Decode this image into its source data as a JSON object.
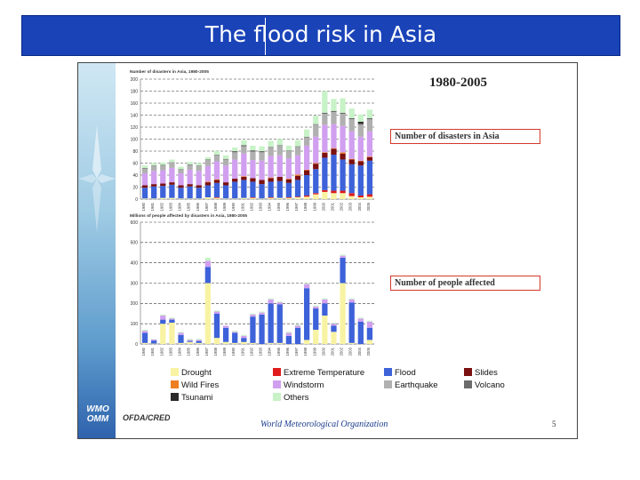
{
  "slide_title": "The flood risk in Asia",
  "period_label": "1980-2005",
  "callouts": {
    "disasters": "Number of disasters in Asia",
    "affected": "Number of people affected"
  },
  "footer": {
    "source": "OFDA/CRED",
    "org": "World Meteorological Organization",
    "page_number": "5"
  },
  "logo": {
    "line1": "WMO",
    "line2": "OMM"
  },
  "colors": {
    "Drought": "#f8f3a3",
    "Extreme Temperature": "#e01b1b",
    "Flood": "#3d62d9",
    "Slides": "#7a1010",
    "Wild Fires": "#f07e23",
    "Windstorm": "#d19ff0",
    "Earthquake": "#b0b0b0",
    "Volcano": "#6b6b6b",
    "Tsunami": "#2a2a2a",
    "Others": "#c8f2c8",
    "title_bar": "#1a43b8"
  },
  "legend": [
    {
      "name": "Drought",
      "label": "Drought"
    },
    {
      "name": "Extreme Temperature",
      "label": "Extreme Temperature"
    },
    {
      "name": "Flood",
      "label": "Flood"
    },
    {
      "name": "Slides",
      "label": "Slides"
    },
    {
      "name": "Wild Fires",
      "label": "Wild Fires"
    },
    {
      "name": "Windstorm",
      "label": "Windstorm"
    },
    {
      "name": "Earthquake",
      "label": "Earthquake"
    },
    {
      "name": "Volcano",
      "label": "Volcano"
    },
    {
      "name": "Tsunami",
      "label": "Tsunami"
    },
    {
      "name": "Others",
      "label": "Others"
    }
  ],
  "chart_data": [
    {
      "type": "bar",
      "stacked": true,
      "title": "Number of disasters in Asia, 1980-2005",
      "ylim": [
        0,
        200
      ],
      "yticks": [
        0,
        20,
        40,
        60,
        80,
        100,
        120,
        140,
        160,
        180,
        200
      ],
      "grid": true,
      "categories": [
        "1980",
        "1981",
        "1982",
        "1983",
        "1984",
        "1985",
        "1986",
        "1987",
        "1988",
        "1989",
        "1990",
        "1991",
        "1992",
        "1993",
        "1994",
        "1995",
        "1996",
        "1997",
        "1998",
        "1999",
        "2000",
        "2001",
        "2002",
        "2003",
        "2004",
        "2005"
      ],
      "series": [
        {
          "name": "Drought",
          "values": [
            1,
            1,
            2,
            2,
            1,
            1,
            1,
            3,
            2,
            1,
            1,
            2,
            2,
            1,
            2,
            2,
            2,
            3,
            4,
            8,
            12,
            10,
            10,
            5,
            3,
            4
          ]
        },
        {
          "name": "Extreme Temperature",
          "values": [
            0,
            0,
            0,
            0,
            0,
            0,
            0,
            0,
            1,
            0,
            0,
            0,
            1,
            0,
            1,
            0,
            1,
            1,
            2,
            2,
            3,
            4,
            4,
            5,
            3,
            4
          ]
        },
        {
          "name": "Flood",
          "values": [
            18,
            20,
            20,
            22,
            18,
            20,
            18,
            20,
            24,
            22,
            28,
            30,
            26,
            24,
            26,
            28,
            24,
            28,
            34,
            40,
            54,
            60,
            52,
            48,
            50,
            56
          ]
        },
        {
          "name": "Slides",
          "values": [
            4,
            4,
            4,
            4,
            4,
            4,
            4,
            5,
            5,
            5,
            5,
            5,
            6,
            7,
            6,
            7,
            6,
            7,
            8,
            9,
            8,
            10,
            10,
            8,
            7,
            6
          ]
        },
        {
          "name": "Wild Fires",
          "values": [
            0,
            0,
            0,
            0,
            0,
            0,
            0,
            1,
            1,
            0,
            0,
            1,
            0,
            0,
            1,
            0,
            1,
            2,
            1,
            1,
            1,
            1,
            2,
            1,
            1,
            1
          ]
        },
        {
          "name": "Windstorm",
          "values": [
            20,
            22,
            22,
            24,
            20,
            24,
            24,
            26,
            30,
            28,
            32,
            38,
            30,
            32,
            36,
            36,
            34,
            32,
            40,
            44,
            46,
            40,
            44,
            46,
            40,
            42
          ]
        },
        {
          "name": "Earthquake",
          "values": [
            8,
            8,
            8,
            10,
            6,
            8,
            8,
            10,
            10,
            10,
            12,
            12,
            14,
            14,
            14,
            16,
            12,
            14,
            14,
            20,
            18,
            20,
            20,
            20,
            20,
            20
          ]
        },
        {
          "name": "Volcano",
          "values": [
            1,
            1,
            1,
            0,
            1,
            1,
            1,
            1,
            1,
            1,
            2,
            2,
            1,
            2,
            1,
            1,
            1,
            1,
            1,
            1,
            2,
            2,
            2,
            2,
            2,
            2
          ]
        },
        {
          "name": "Tsunami",
          "values": [
            0,
            0,
            0,
            0,
            0,
            0,
            0,
            0,
            0,
            0,
            0,
            0,
            1,
            0,
            0,
            0,
            0,
            0,
            0,
            0,
            0,
            0,
            0,
            0,
            3,
            0
          ]
        },
        {
          "name": "Others",
          "values": [
            4,
            4,
            4,
            4,
            4,
            4,
            4,
            4,
            6,
            6,
            6,
            8,
            8,
            8,
            10,
            10,
            8,
            10,
            12,
            14,
            36,
            20,
            24,
            16,
            12,
            14
          ]
        }
      ]
    },
    {
      "type": "bar",
      "stacked": true,
      "title": "Millions of people affected by disasters in Asia, 1980-2005",
      "ylim": [
        0,
        600
      ],
      "yticks": [
        0,
        100,
        200,
        300,
        400,
        500,
        600
      ],
      "grid": true,
      "categories": [
        "1980",
        "1981",
        "1982",
        "1983",
        "1984",
        "1985",
        "1986",
        "1987",
        "1988",
        "1989",
        "1990",
        "1991",
        "1992",
        "1993",
        "1994",
        "1995",
        "1996",
        "1997",
        "1998",
        "1999",
        "2000",
        "2001",
        "2002",
        "2003",
        "2004",
        "2005"
      ],
      "series": [
        {
          "name": "Drought",
          "values": [
            5,
            2,
            100,
            105,
            5,
            10,
            5,
            300,
            30,
            10,
            5,
            10,
            5,
            0,
            5,
            5,
            0,
            0,
            20,
            70,
            140,
            60,
            300,
            5,
            0,
            20
          ]
        },
        {
          "name": "Flood",
          "values": [
            50,
            15,
            20,
            15,
            40,
            5,
            10,
            80,
            120,
            70,
            50,
            20,
            130,
            145,
            195,
            190,
            40,
            80,
            255,
            105,
            60,
            30,
            125,
            200,
            110,
            60
          ]
        },
        {
          "name": "Windstorm",
          "values": [
            10,
            5,
            20,
            5,
            10,
            5,
            5,
            30,
            10,
            10,
            5,
            10,
            10,
            10,
            20,
            10,
            15,
            10,
            20,
            10,
            20,
            10,
            10,
            15,
            15,
            30
          ]
        },
        {
          "name": "Others",
          "values": [
            5,
            2,
            5,
            5,
            5,
            5,
            5,
            15,
            5,
            0,
            5,
            5,
            5,
            5,
            5,
            5,
            5,
            5,
            5,
            5,
            5,
            5,
            5,
            5,
            5,
            5
          ]
        }
      ]
    }
  ]
}
